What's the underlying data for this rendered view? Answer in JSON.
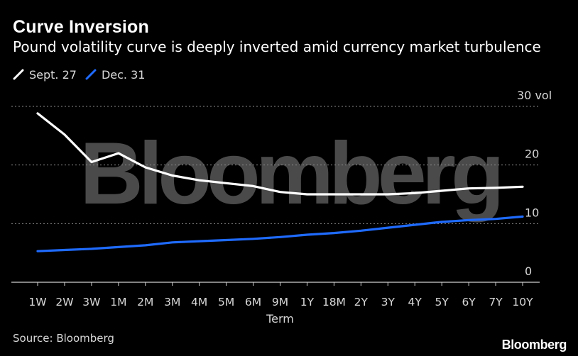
{
  "chart_data": {
    "type": "line",
    "title": "Curve Inversion",
    "subtitle": "Pound volatility curve is deeply inverted amid currency market turbulence",
    "xlabel": "Term",
    "y_unit_label": "30 vol",
    "categories": [
      "1W",
      "2W",
      "3W",
      "1M",
      "2M",
      "3M",
      "4M",
      "5M",
      "6M",
      "9M",
      "1Y",
      "18M",
      "2Y",
      "3Y",
      "4Y",
      "5Y",
      "6Y",
      "7Y",
      "10Y"
    ],
    "ylim": [
      0,
      30
    ],
    "yticks": [
      {
        "value": 0,
        "label": "0"
      },
      {
        "value": 10,
        "label": "10"
      },
      {
        "value": 20,
        "label": "20"
      },
      {
        "value": 30,
        "label": "30 vol"
      }
    ],
    "grid": true,
    "legend": "top-left",
    "series": [
      {
        "name": "Sept. 27",
        "color": "#ffffff",
        "values": [
          28.8,
          25.2,
          20.5,
          22.0,
          19.6,
          18.2,
          17.4,
          16.9,
          16.4,
          15.4,
          15.0,
          15.0,
          15.0,
          15.0,
          15.2,
          15.6,
          16.0,
          16.1,
          16.3
        ]
      },
      {
        "name": "Dec. 31",
        "color": "#1f6bff",
        "values": [
          5.3,
          5.5,
          5.7,
          6.0,
          6.3,
          6.8,
          7.0,
          7.2,
          7.4,
          7.7,
          8.1,
          8.4,
          8.8,
          9.3,
          9.8,
          10.3,
          10.6,
          10.8,
          11.2
        ]
      }
    ],
    "watermark": "Bloomberg"
  },
  "footer": {
    "source": "Source: Bloomberg",
    "brand": "Bloomberg"
  }
}
